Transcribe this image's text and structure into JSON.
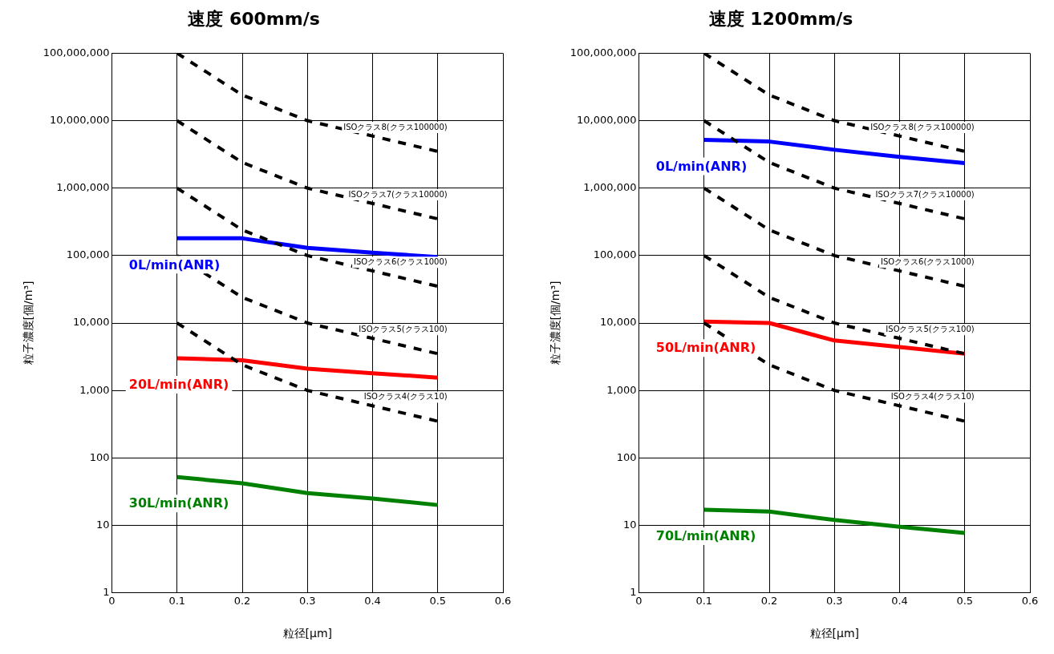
{
  "chart_data": [
    {
      "type": "line",
      "title": "速度 600mm/s",
      "xlabel": "粒径[μm]",
      "ylabel": "粒子濃度[個/m³]",
      "log": "y",
      "grid": true,
      "legend": false,
      "marker": "none",
      "xlim": [
        0,
        0.6
      ],
      "xticks": [
        0,
        0.1,
        0.2,
        0.3,
        0.4,
        0.5,
        0.6
      ],
      "ylim": [
        1,
        100000000
      ],
      "yticks": [
        1,
        10,
        100,
        {
          "value": 1000,
          "label": "1,000"
        },
        {
          "value": 10000,
          "label": "10,000"
        },
        {
          "value": 100000,
          "label": "100,000"
        },
        {
          "value": 1000000,
          "label": "1,000,000"
        },
        {
          "value": 10000000,
          "label": "10,000,000"
        },
        {
          "value": 100000000,
          "label": "100,000,000"
        }
      ],
      "x": [
        0.1,
        0.2,
        0.3,
        0.4,
        0.5
      ],
      "series": [
        {
          "name": "ISOクラス8(クラス100000)",
          "color": "#000000",
          "line_style": "dashed",
          "x": [
            0.1,
            0.2,
            0.3,
            0.5
          ],
          "values": [
            100000000,
            24000000,
            10000000,
            3500000
          ]
        },
        {
          "name": "ISOクラス7(クラス10000)",
          "color": "#000000",
          "line_style": "dashed",
          "x": [
            0.1,
            0.2,
            0.3,
            0.5
          ],
          "values": [
            10000000,
            2400000,
            1000000,
            350000
          ]
        },
        {
          "name": "ISOクラス6(クラス1000)",
          "color": "#000000",
          "line_style": "dashed",
          "x": [
            0.1,
            0.2,
            0.3,
            0.5
          ],
          "values": [
            1000000,
            240000,
            100000,
            35000
          ]
        },
        {
          "name": "ISOクラス5(クラス100)",
          "color": "#000000",
          "line_style": "dashed",
          "x": [
            0.1,
            0.2,
            0.3,
            0.5
          ],
          "values": [
            100000,
            24000,
            10000,
            3500
          ]
        },
        {
          "name": "ISOクラス4(クラス10)",
          "color": "#000000",
          "line_style": "dashed",
          "x": [
            0.1,
            0.2,
            0.3,
            0.5
          ],
          "values": [
            10000,
            2400,
            1000,
            350
          ]
        },
        {
          "name": "0L/min(ANR)",
          "color": "#0000ff",
          "line_style": "solid",
          "values": [
            180000,
            180000,
            130000,
            110000,
            95000
          ]
        },
        {
          "name": "20L/min(ANR)",
          "color": "#ff0000",
          "line_style": "solid",
          "values": [
            3000,
            2800,
            2100,
            1800,
            1550
          ]
        },
        {
          "name": "30L/min(ANR)",
          "color": "#008000",
          "line_style": "solid",
          "values": [
            52,
            42,
            30,
            25,
            20
          ]
        }
      ]
    },
    {
      "type": "line",
      "title": "速度 1200mm/s",
      "xlabel": "粒径[μm]",
      "ylabel": "粒子濃度[個/m³]",
      "log": "y",
      "grid": true,
      "legend": false,
      "marker": "none",
      "xlim": [
        0,
        0.6
      ],
      "xticks": [
        0,
        0.1,
        0.2,
        0.3,
        0.4,
        0.5,
        0.6
      ],
      "ylim": [
        1,
        100000000
      ],
      "yticks": [
        1,
        10,
        100,
        {
          "value": 1000,
          "label": "1,000"
        },
        {
          "value": 10000,
          "label": "10,000"
        },
        {
          "value": 100000,
          "label": "100,000"
        },
        {
          "value": 1000000,
          "label": "1,000,000"
        },
        {
          "value": 10000000,
          "label": "10,000,000"
        },
        {
          "value": 100000000,
          "label": "100,000,000"
        }
      ],
      "x": [
        0.1,
        0.2,
        0.3,
        0.4,
        0.5
      ],
      "series": [
        {
          "name": "ISOクラス8(クラス100000)",
          "color": "#000000",
          "line_style": "dashed",
          "x": [
            0.1,
            0.2,
            0.3,
            0.5
          ],
          "values": [
            100000000,
            24000000,
            10000000,
            3500000
          ]
        },
        {
          "name": "ISOクラス7(クラス10000)",
          "color": "#000000",
          "line_style": "dashed",
          "x": [
            0.1,
            0.2,
            0.3,
            0.5
          ],
          "values": [
            10000000,
            2400000,
            1000000,
            350000
          ]
        },
        {
          "name": "ISOクラス6(クラス1000)",
          "color": "#000000",
          "line_style": "dashed",
          "x": [
            0.1,
            0.2,
            0.3,
            0.5
          ],
          "values": [
            1000000,
            240000,
            100000,
            35000
          ]
        },
        {
          "name": "ISOクラス5(クラス100)",
          "color": "#000000",
          "line_style": "dashed",
          "x": [
            0.1,
            0.2,
            0.3,
            0.5
          ],
          "values": [
            100000,
            24000,
            10000,
            3500
          ]
        },
        {
          "name": "ISOクラス4(クラス10)",
          "color": "#000000",
          "line_style": "dashed",
          "x": [
            0.1,
            0.2,
            0.3,
            0.5
          ],
          "values": [
            10000,
            2400,
            1000,
            350
          ]
        },
        {
          "name": "0L/min(ANR)",
          "color": "#0000ff",
          "line_style": "solid",
          "values": [
            5200000,
            4900000,
            3700000,
            2900000,
            2350000
          ]
        },
        {
          "name": "50L/min(ANR)",
          "color": "#ff0000",
          "line_style": "solid",
          "values": [
            10500,
            10000,
            5500,
            4400,
            3500
          ]
        },
        {
          "name": "70L/min(ANR)",
          "color": "#008000",
          "line_style": "solid",
          "values": [
            17,
            16,
            12,
            9.5,
            7.7
          ]
        }
      ]
    }
  ]
}
